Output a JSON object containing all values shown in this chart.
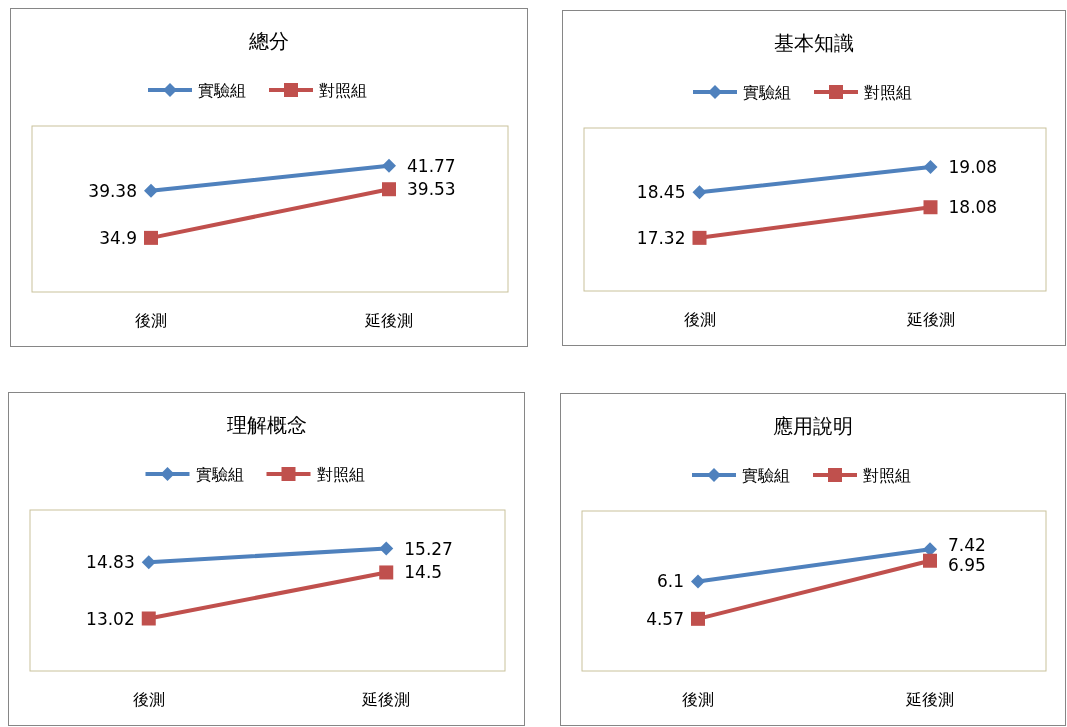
{
  "chart_data": [
    {
      "type": "line",
      "title": "總分",
      "categories": [
        "後測",
        "延後測"
      ],
      "legend": "top",
      "data_labels": true,
      "series": [
        {
          "name": "實驗組",
          "color": "#4f81bd",
          "marker": "diamond",
          "values": [
            39.38,
            41.77
          ]
        },
        {
          "name": "對照組",
          "color": "#c0504d",
          "marker": "square",
          "values": [
            34.9,
            39.53
          ]
        }
      ]
    },
    {
      "type": "line",
      "title": "基本知識",
      "categories": [
        "後測",
        "延後測"
      ],
      "legend": "top",
      "data_labels": true,
      "series": [
        {
          "name": "實驗組",
          "color": "#4f81bd",
          "marker": "diamond",
          "values": [
            18.45,
            19.08
          ]
        },
        {
          "name": "對照組",
          "color": "#c0504d",
          "marker": "square",
          "values": [
            17.32,
            18.08
          ]
        }
      ]
    },
    {
      "type": "line",
      "title": "理解概念",
      "categories": [
        "後測",
        "延後測"
      ],
      "legend": "top",
      "data_labels": true,
      "series": [
        {
          "name": "實驗組",
          "color": "#4f81bd",
          "marker": "diamond",
          "values": [
            14.83,
            15.27
          ]
        },
        {
          "name": "對照組",
          "color": "#c0504d",
          "marker": "square",
          "values": [
            13.02,
            14.5
          ]
        }
      ]
    },
    {
      "type": "line",
      "title": "應用說明",
      "categories": [
        "後測",
        "延後測"
      ],
      "legend": "top",
      "data_labels": true,
      "series": [
        {
          "name": "實驗組",
          "color": "#4f81bd",
          "marker": "diamond",
          "values": [
            6.1,
            7.42
          ]
        },
        {
          "name": "對照組",
          "color": "#c0504d",
          "marker": "square",
          "values": [
            4.57,
            6.95
          ]
        }
      ]
    }
  ]
}
